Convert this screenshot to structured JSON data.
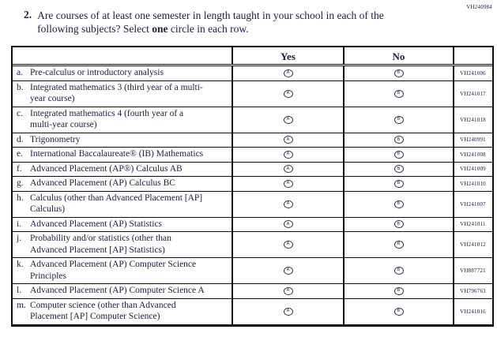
{
  "form_code_top_right": "VH240984",
  "question": {
    "number": "2.",
    "text_before_bold": "Are courses of at least one semester in length taught in your school in each of the following subjects? Select ",
    "bold_word": "one",
    "text_after_bold": " circle in each row."
  },
  "table": {
    "header": {
      "yes": "Yes",
      "no": "No"
    },
    "bubble": {
      "yes_letter": "A",
      "no_letter": "B"
    },
    "rows": [
      {
        "marker": "a.",
        "label": "Pre-calculus or introductory analysis",
        "code": "VH241006"
      },
      {
        "marker": "b.",
        "label": "Integrated mathematics 3 (third year of a multi-year course)",
        "code": "VH241017"
      },
      {
        "marker": "c.",
        "label": "Integrated mathematics 4 (fourth year of a multi-year course)",
        "code": "VH241018"
      },
      {
        "marker": "d.",
        "label": "Trigonometry",
        "code": "VH240991"
      },
      {
        "marker": "e.",
        "label": "International Baccalaureate® (IB) Mathematics",
        "code": "VH241008"
      },
      {
        "marker": "f.",
        "label": "Advanced Placement (AP®) Calculus AB",
        "code": "VH241009"
      },
      {
        "marker": "g.",
        "label": "Advanced Placement (AP) Calculus BC",
        "code": "VH241010"
      },
      {
        "marker": "h.",
        "label": "Calculus (other than Advanced Placement [AP] Calculus)",
        "code": "VH241007"
      },
      {
        "marker": "i.",
        "label": "Advanced Placement (AP) Statistics",
        "code": "VH241011"
      },
      {
        "marker": "j.",
        "label": "Probability and/or statistics (other than Advanced Placement [AP] Statistics)",
        "code": "VH241012"
      },
      {
        "marker": "k.",
        "label": "Advanced Placement (AP) Computer Science Principles",
        "code": "VH887721"
      },
      {
        "marker": "l.",
        "label": "Advanced Placement (AP) Computer Science A",
        "code": "VH796763"
      },
      {
        "marker": "m.",
        "label": "Computer science (other than Advanced Placement [AP] Computer Science)",
        "code": "VH241016"
      }
    ]
  },
  "colors": {
    "ink": "#20203b",
    "border": "#0e0e0e",
    "background": "#ffffff"
  }
}
